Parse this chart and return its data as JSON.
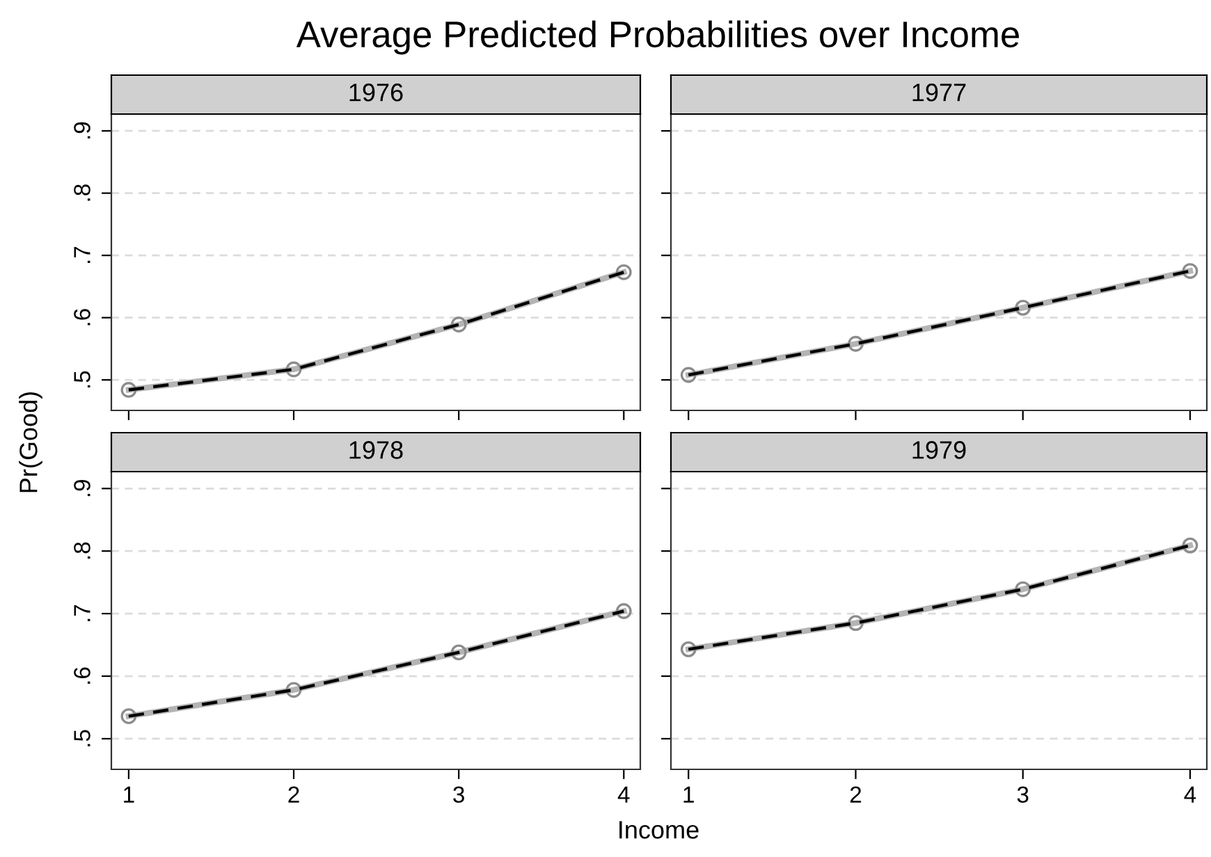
{
  "chart_data": [
    {
      "type": "line",
      "title": "1976",
      "ylabel": "Pr(Good)",
      "annotations": [
        "Average Predicted Probabilities over Income"
      ],
      "x": [
        1,
        2,
        3,
        4
      ],
      "xlim": [
        0.895,
        4.1
      ],
      "ylim": [
        0.451,
        0.927
      ],
      "xticks": [
        {
          "value": 1,
          "label": null
        },
        {
          "value": 2,
          "label": null
        },
        {
          "value": 3,
          "label": null
        },
        {
          "value": 4,
          "label": null
        }
      ],
      "yticks": [
        {
          "value": 0.5,
          "label": ".5"
        },
        {
          "value": 0.6,
          "label": ".6"
        },
        {
          "value": 0.7,
          "label": ".7"
        },
        {
          "value": 0.8,
          "label": ".8"
        },
        {
          "value": 0.9,
          "label": ".9"
        }
      ],
      "grid": "y",
      "tick_labels": "y",
      "series": [
        {
          "color": "#b4b4b4",
          "marker": "circle",
          "line_style": "solid",
          "values": [
            0.484,
            0.517,
            0.589,
            0.673
          ]
        },
        {
          "color": "#000000",
          "marker": "none",
          "line_style": "dashed",
          "values": [
            0.484,
            0.517,
            0.589,
            0.673
          ]
        }
      ]
    },
    {
      "type": "line",
      "title": "1977",
      "x": [
        1,
        2,
        3,
        4
      ],
      "xlim": [
        0.895,
        4.1
      ],
      "ylim": [
        0.451,
        0.927
      ],
      "xticks": [
        {
          "value": 1,
          "label": null
        },
        {
          "value": 2,
          "label": null
        },
        {
          "value": 3,
          "label": null
        },
        {
          "value": 4,
          "label": null
        }
      ],
      "yticks": [
        {
          "value": 0.5,
          "label": null
        },
        {
          "value": 0.6,
          "label": null
        },
        {
          "value": 0.7,
          "label": null
        },
        {
          "value": 0.8,
          "label": null
        },
        {
          "value": 0.9,
          "label": null
        }
      ],
      "grid": "y",
      "tick_labels": false,
      "series": [
        {
          "color": "#b4b4b4",
          "marker": "circle",
          "line_style": "solid",
          "values": [
            0.508,
            0.558,
            0.616,
            0.675
          ]
        },
        {
          "color": "#000000",
          "marker": "none",
          "line_style": "dashed",
          "values": [
            0.508,
            0.558,
            0.616,
            0.675
          ]
        }
      ]
    },
    {
      "type": "line",
      "title": "1978",
      "xlabel": "Income",
      "x": [
        1,
        2,
        3,
        4
      ],
      "xlim": [
        0.895,
        4.1
      ],
      "ylim": [
        0.451,
        0.927
      ],
      "xticks": [
        1,
        2,
        3,
        4
      ],
      "yticks": [
        {
          "value": 0.5,
          "label": ".5"
        },
        {
          "value": 0.6,
          "label": ".6"
        },
        {
          "value": 0.7,
          "label": ".7"
        },
        {
          "value": 0.8,
          "label": ".8"
        },
        {
          "value": 0.9,
          "label": ".9"
        }
      ],
      "grid": "y",
      "series": [
        {
          "color": "#b4b4b4",
          "marker": "circle",
          "line_style": "solid",
          "values": [
            0.536,
            0.578,
            0.638,
            0.704
          ]
        },
        {
          "color": "#000000",
          "marker": "none",
          "line_style": "dashed",
          "values": [
            0.536,
            0.578,
            0.638,
            0.704
          ]
        }
      ]
    },
    {
      "type": "line",
      "title": "1979",
      "x": [
        1,
        2,
        3,
        4
      ],
      "xlim": [
        0.895,
        4.1
      ],
      "ylim": [
        0.451,
        0.927
      ],
      "xticks": [
        1,
        2,
        3,
        4
      ],
      "yticks": [
        {
          "value": 0.5,
          "label": null
        },
        {
          "value": 0.6,
          "label": null
        },
        {
          "value": 0.7,
          "label": null
        },
        {
          "value": 0.8,
          "label": null
        },
        {
          "value": 0.9,
          "label": null
        }
      ],
      "grid": "y",
      "tick_labels": "x",
      "series": [
        {
          "color": "#b4b4b4",
          "marker": "circle",
          "line_style": "solid",
          "values": [
            0.643,
            0.685,
            0.739,
            0.809
          ]
        },
        {
          "color": "#000000",
          "marker": "none",
          "line_style": "dashed",
          "values": [
            0.643,
            0.685,
            0.739,
            0.809
          ]
        }
      ]
    }
  ]
}
